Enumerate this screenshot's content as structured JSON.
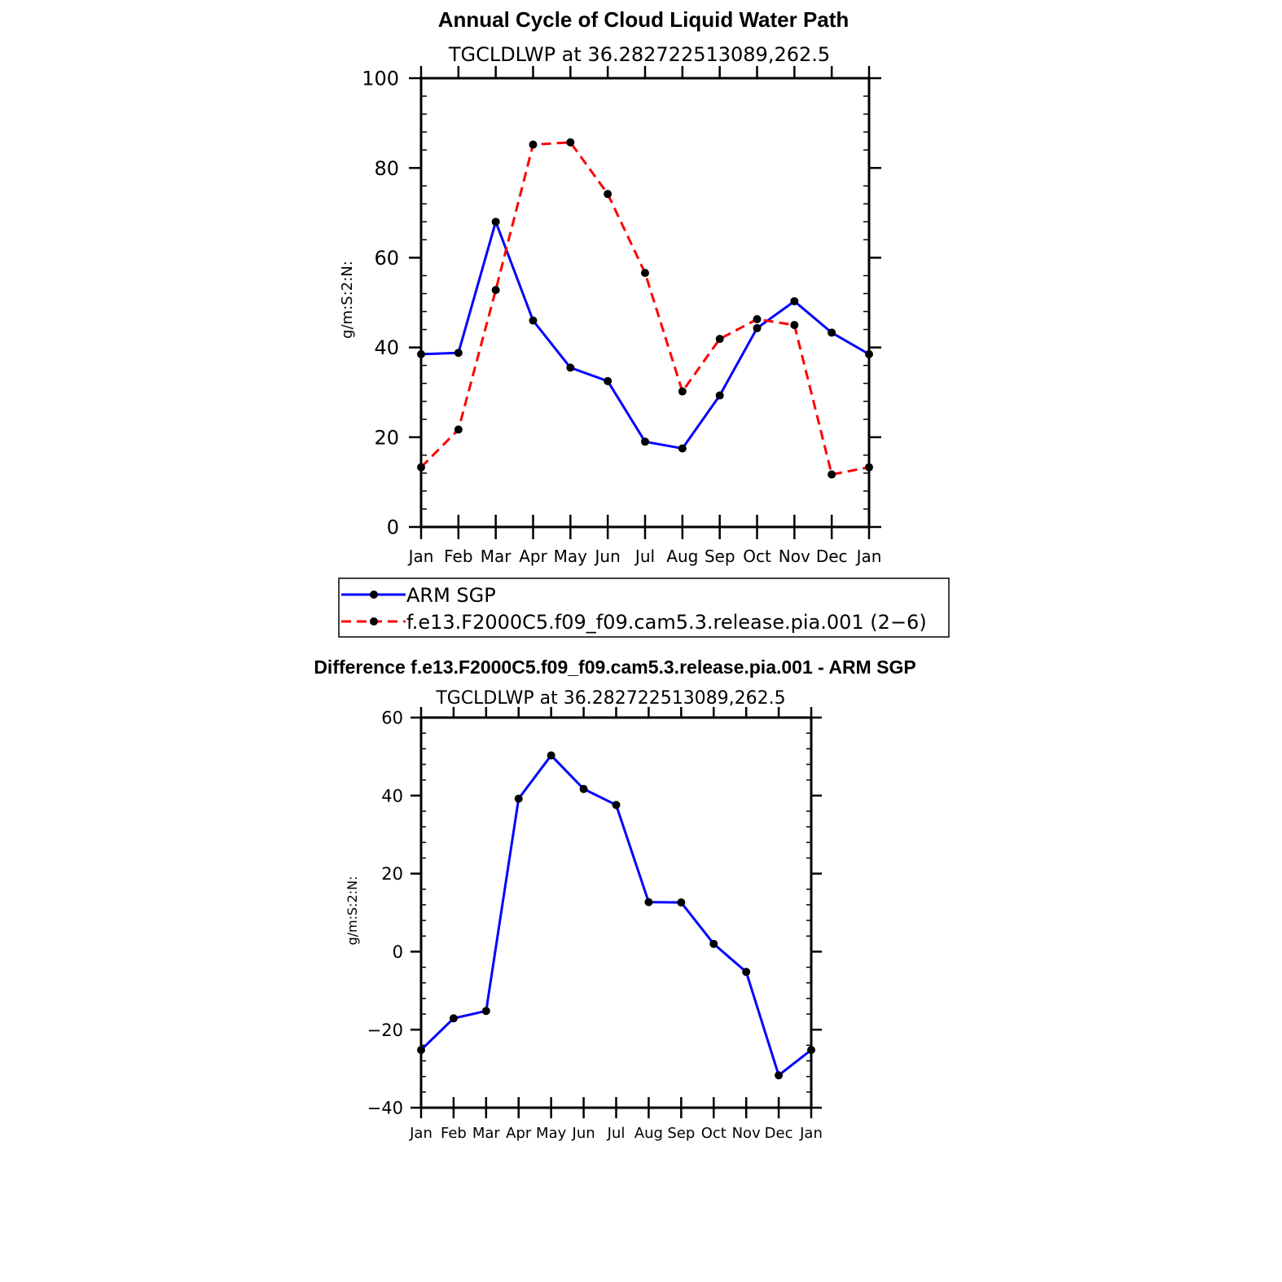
{
  "chart_data": [
    {
      "type": "line",
      "title": "Annual Cycle of Cloud Liquid Water Path",
      "subtitle": "TGCLDLWP at 36.282722513089,262.5",
      "ylabel": "g/m:S:2:N:",
      "categories": [
        "Jan",
        "Feb",
        "Mar",
        "Apr",
        "May",
        "Jun",
        "Jul",
        "Aug",
        "Sep",
        "Oct",
        "Nov",
        "Dec",
        "Jan"
      ],
      "ylim": [
        0,
        100
      ],
      "yticks": [
        0,
        20,
        40,
        60,
        80,
        100
      ],
      "series": [
        {
          "name": "ARM SGP",
          "color": "#0000ff",
          "dash": "solid",
          "values": [
            38.5,
            38.8,
            68.0,
            46.0,
            35.5,
            32.5,
            19.0,
            17.5,
            29.3,
            44.3,
            50.3,
            43.3,
            38.5
          ]
        },
        {
          "name": "f.e13.F2000C5.f09_f09.cam5.3.release.pia.001 (2−6)",
          "color": "#ff0000",
          "dash": "dashed",
          "values": [
            13.3,
            21.7,
            52.8,
            85.2,
            85.7,
            74.2,
            56.6,
            30.2,
            41.9,
            46.3,
            45.0,
            11.7,
            13.3
          ]
        }
      ]
    },
    {
      "type": "line",
      "title": "Difference f.e13.F2000C5.f09_f09.cam5.3.release.pia.001 - ARM SGP",
      "subtitle": "TGCLDLWP at 36.282722513089,262.5",
      "ylabel": "g/m:S:2:N:",
      "categories": [
        "Jan",
        "Feb",
        "Mar",
        "Apr",
        "May",
        "Jun",
        "Jul",
        "Aug",
        "Sep",
        "Oct",
        "Nov",
        "Dec",
        "Jan"
      ],
      "ylim": [
        -40,
        60
      ],
      "yticks": [
        -40,
        -20,
        0,
        20,
        40,
        60
      ],
      "series": [
        {
          "color": "#0000ff",
          "dash": "solid",
          "values": [
            -25.2,
            -17.1,
            -15.2,
            39.2,
            50.3,
            41.7,
            37.6,
            12.7,
            12.6,
            2.0,
            -5.2,
            -31.7,
            -25.2
          ]
        }
      ]
    }
  ]
}
